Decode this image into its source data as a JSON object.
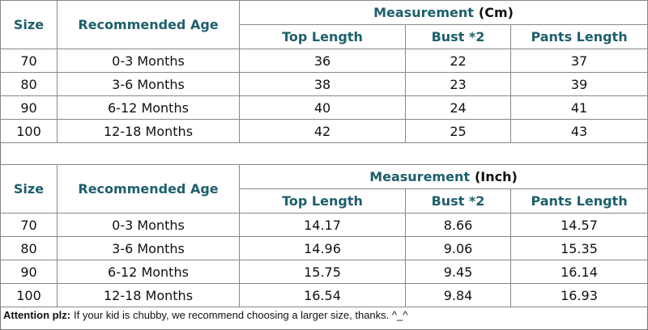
{
  "tables": [
    {
      "headers": {
        "size": "Size",
        "age": "Recommended Age",
        "measurement": "Measurement",
        "unit": "(Cm)",
        "columns": [
          "Top Length",
          "Bust *2",
          "Pants Length"
        ]
      },
      "rows": [
        [
          "70",
          "0-3 Months",
          "36",
          "22",
          "37"
        ],
        [
          "80",
          "3-6 Months",
          "38",
          "23",
          "39"
        ],
        [
          "90",
          "6-12 Months",
          "40",
          "24",
          "41"
        ],
        [
          "100",
          "12-18 Months",
          "42",
          "25",
          "43"
        ]
      ]
    },
    {
      "headers": {
        "size": "Size",
        "age": "Recommended Age",
        "measurement": "Measurement",
        "unit": "(Inch)",
        "columns": [
          "Top Length",
          "Bust *2",
          "Pants Length"
        ]
      },
      "rows": [
        [
          "70",
          "0-3 Months",
          "14.17",
          "8.66",
          "14.57"
        ],
        [
          "80",
          "3-6 Months",
          "14.96",
          "9.06",
          "15.35"
        ],
        [
          "90",
          "6-12 Months",
          "15.75",
          "9.45",
          "16.14"
        ],
        [
          "100",
          "12-18 Months",
          "16.54",
          "9.84",
          "16.93"
        ]
      ]
    }
  ],
  "footer": {
    "label": "Attention plz:",
    "text": "If your kid is chubby, we recommend choosing a larger size, thanks. ^_^"
  }
}
